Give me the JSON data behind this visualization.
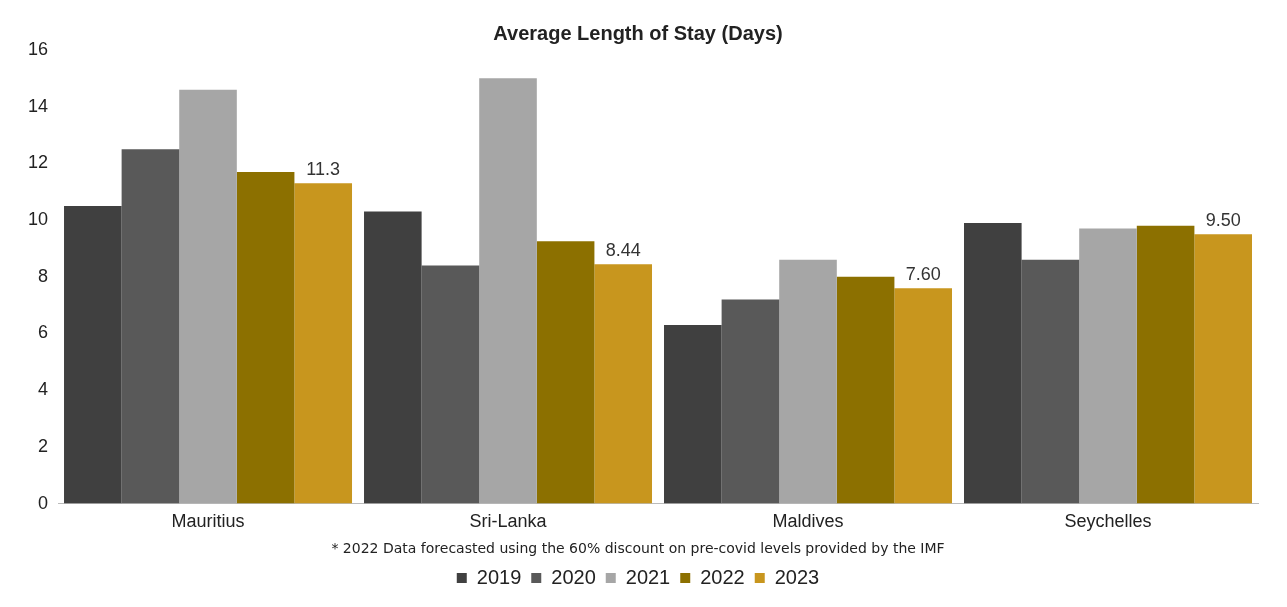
{
  "chart_data": {
    "type": "bar",
    "title": "Average Length of Stay (Days)",
    "categories": [
      "Mauritius",
      "Sri-Lanka",
      "Maldives",
      "Seychelles"
    ],
    "series": [
      {
        "name": "2019",
        "color": "#404040",
        "values": [
          10.5,
          10.3,
          6.3,
          9.9
        ]
      },
      {
        "name": "2020",
        "color": "#595959",
        "values": [
          12.5,
          8.4,
          7.2,
          8.6
        ]
      },
      {
        "name": "2021",
        "color": "#a6a6a6",
        "values": [
          14.6,
          15.0,
          8.6,
          9.7
        ]
      },
      {
        "name": "2022",
        "color": "#8c7000",
        "values": [
          11.7,
          9.25,
          8.0,
          9.8
        ]
      },
      {
        "name": "2023",
        "color": "#c8961e",
        "values": [
          11.3,
          8.44,
          7.6,
          9.5
        ],
        "value_labels": [
          "11.3",
          "8.44",
          "7.60",
          "9.50"
        ]
      }
    ],
    "ylim": [
      0,
      16
    ],
    "yticks": [
      0,
      2,
      4,
      6,
      8,
      10,
      12,
      14,
      16
    ],
    "grid": false,
    "legend": "bottom",
    "annotations": [
      "* 2022 Data forecasted using the 60% discount on pre-covid levels provided by the IMF"
    ]
  }
}
